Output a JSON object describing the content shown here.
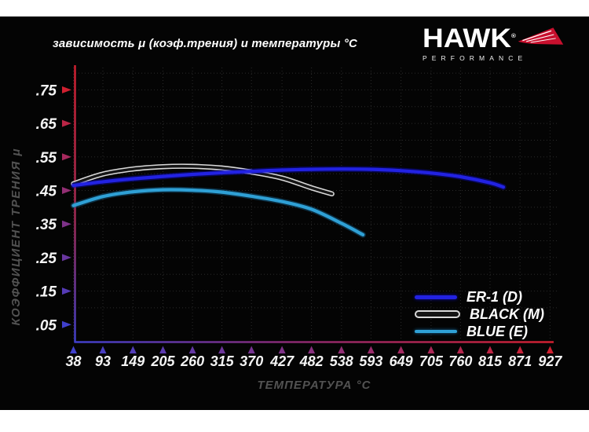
{
  "header": {
    "logo": {
      "brand": "HAWK",
      "registered_mark": "®",
      "subtitle": "PERFORMANCE",
      "accent_color": "#c8102e"
    }
  },
  "chart_data": {
    "type": "line",
    "title": "зависимость μ (коэф.трения) и температуры °C",
    "xlabel": "ТЕМПЕРАТУРА °C",
    "ylabel": "КОЭФФИЦИЕНТ ТРЕНИЯ μ",
    "xlim": [
      38,
      927
    ],
    "ylim": [
      0,
      0.8
    ],
    "grid": "dotted",
    "grid_color": "#2a2a2a",
    "background": "#040404",
    "legend_position": "lower right",
    "x_ticks": [
      38,
      93,
      149,
      205,
      260,
      315,
      370,
      427,
      482,
      538,
      593,
      649,
      705,
      760,
      815,
      871,
      927
    ],
    "y_ticks": [
      {
        "label": ".75",
        "value": 0.75
      },
      {
        "label": ".65",
        "value": 0.65
      },
      {
        "label": ".55",
        "value": 0.55
      },
      {
        "label": ".45",
        "value": 0.45
      },
      {
        "label": ".35",
        "value": 0.35
      },
      {
        "label": ".25",
        "value": 0.25
      },
      {
        "label": ".15",
        "value": 0.15
      },
      {
        "label": ".05",
        "value": 0.05
      }
    ],
    "axis_gradient": {
      "hot": "#d02030",
      "cold": "#4040cc"
    },
    "series": [
      {
        "name": "ER-1 (D)",
        "color": "#2222e2",
        "glow": "#0b0bb4",
        "x": [
          38,
          93,
          149,
          205,
          260,
          315,
          370,
          427,
          482,
          538,
          593,
          649,
          705,
          760,
          815,
          840
        ],
        "y": [
          0.465,
          0.476,
          0.485,
          0.492,
          0.498,
          0.503,
          0.507,
          0.511,
          0.513,
          0.514,
          0.513,
          0.509,
          0.502,
          0.491,
          0.473,
          0.46
        ]
      },
      {
        "name": "BLACK (M)",
        "color": "#151515",
        "outline": "#d9d9d9",
        "x": [
          38,
          93,
          149,
          205,
          260,
          315,
          370,
          427,
          482,
          520
        ],
        "y": [
          0.47,
          0.499,
          0.514,
          0.521,
          0.522,
          0.517,
          0.505,
          0.487,
          0.458,
          0.44
        ]
      },
      {
        "name": "BLUE (E)",
        "color": "#2fa0d5",
        "glow": "#15618f",
        "x": [
          38,
          93,
          149,
          205,
          260,
          315,
          370,
          427,
          482,
          538,
          578
        ],
        "y": [
          0.405,
          0.432,
          0.446,
          0.452,
          0.451,
          0.445,
          0.433,
          0.417,
          0.394,
          0.352,
          0.318
        ]
      }
    ]
  }
}
